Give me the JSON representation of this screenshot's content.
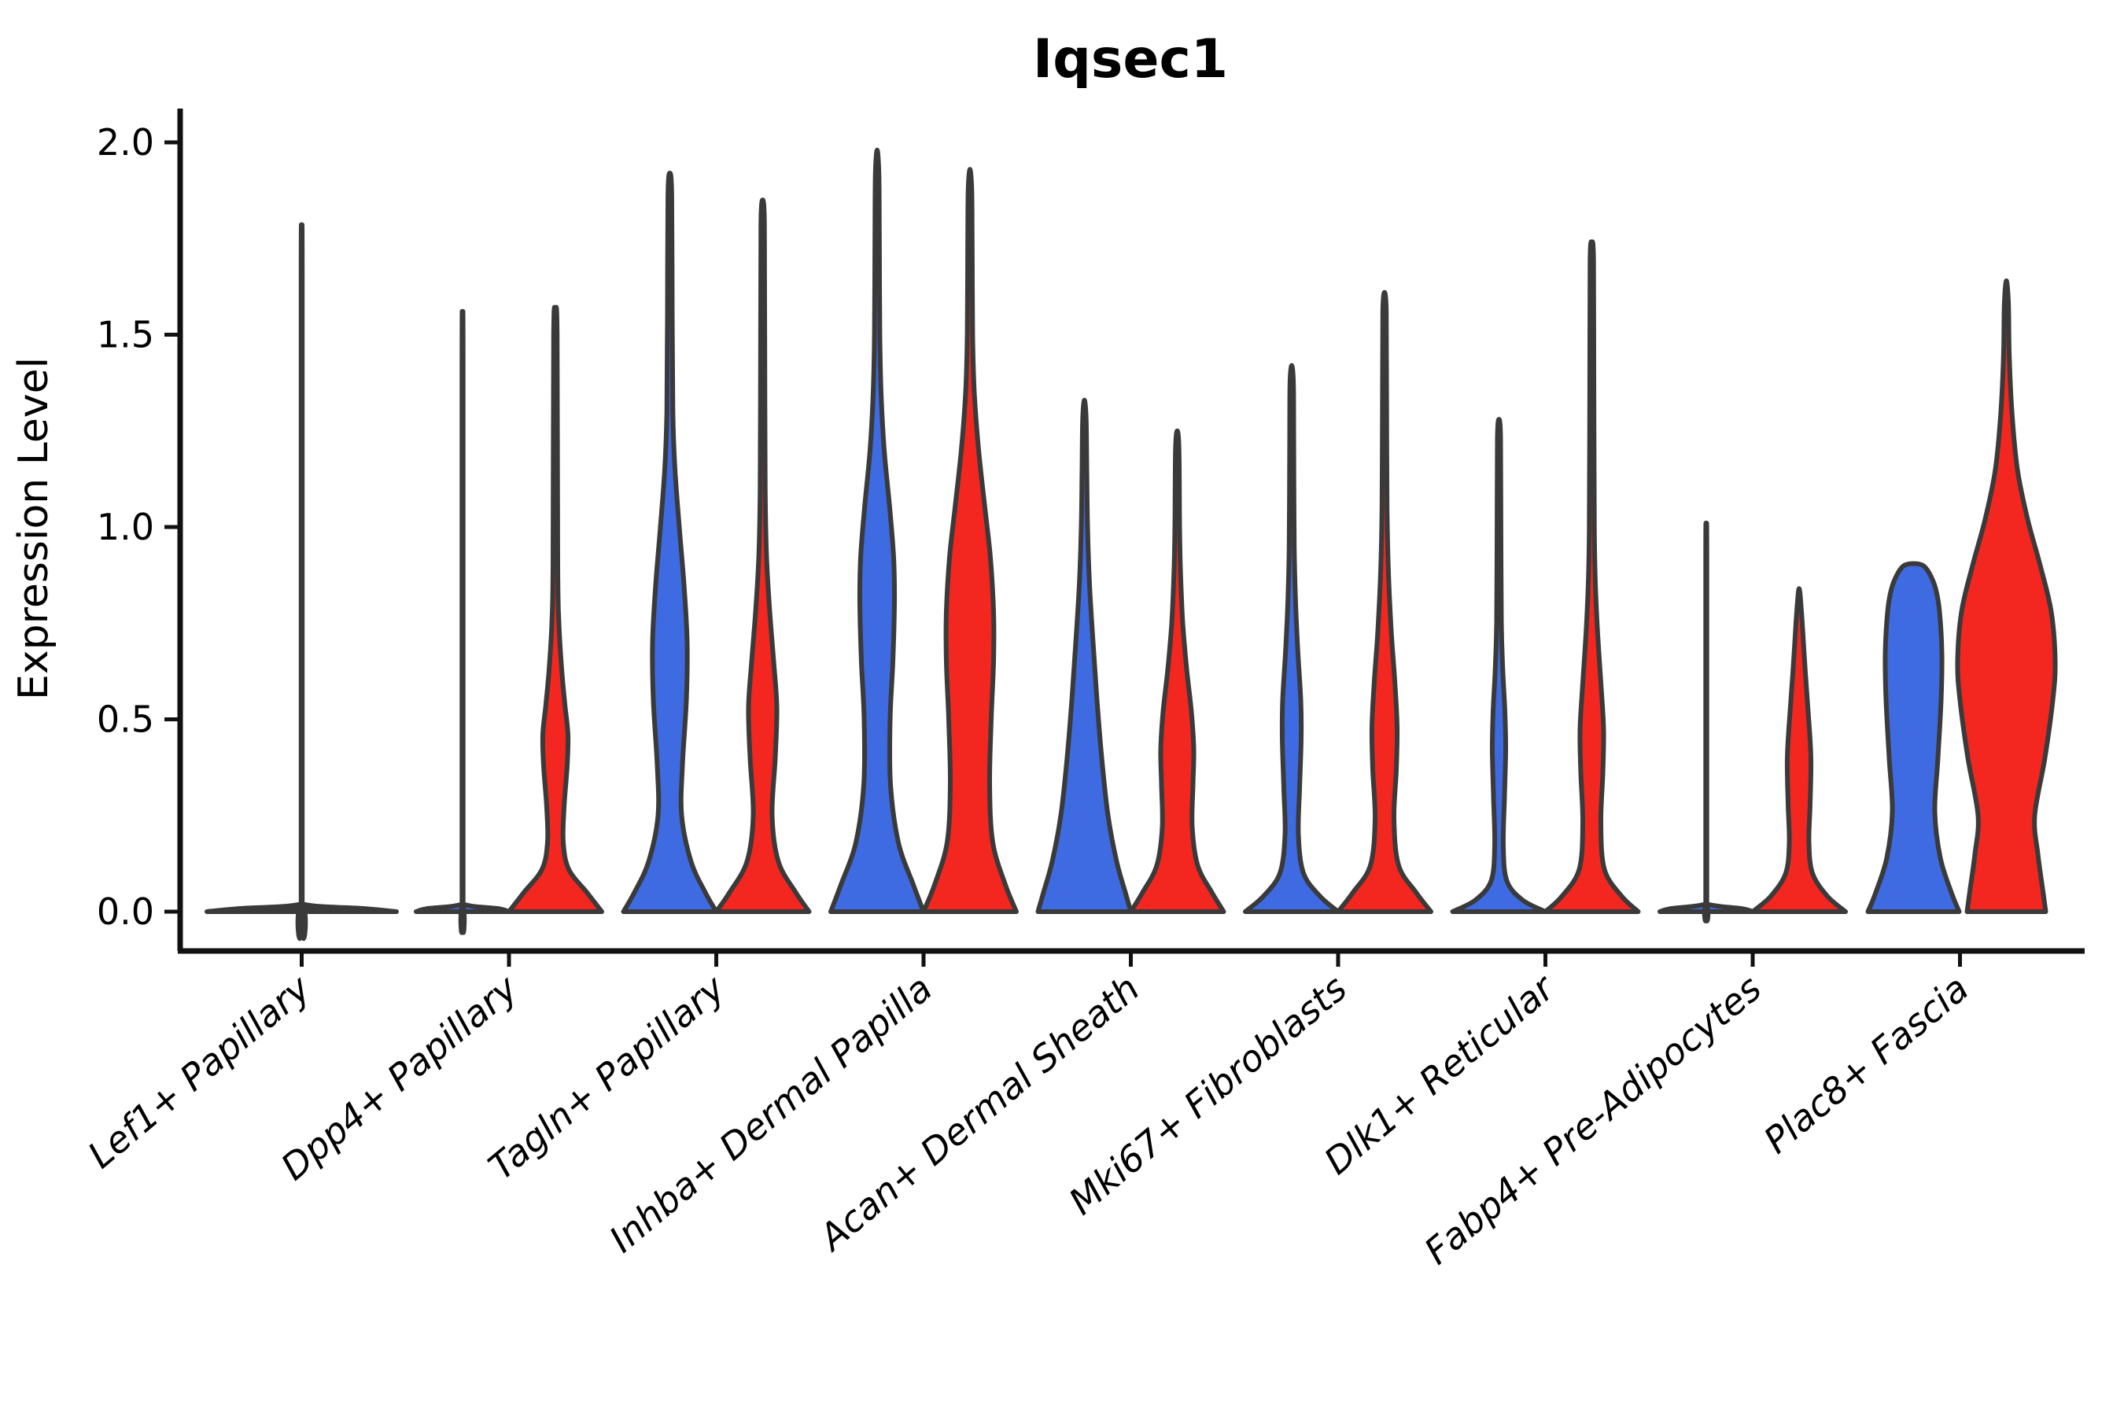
{
  "chart_data": {
    "type": "violin",
    "title": "Iqsec1",
    "ylabel": "Expression Level",
    "xlabel": "",
    "ylim": [
      -0.1,
      2.08
    ],
    "yticks": [
      0.0,
      0.5,
      1.0,
      1.5,
      2.0
    ],
    "ytick_labels": [
      "0.0",
      "0.5",
      "1.0",
      "1.5",
      "2.0"
    ],
    "grid": false,
    "legend": "none",
    "categories": [
      "Lef1+ Papillary",
      "Dpp4+ Papillary",
      "Tagln+ Papillary",
      "Inhba+ Dermal Papilla",
      "Acan+ Dermal Sheath",
      "Mki67+ Fibroblasts",
      "Dlk1+ Reticular",
      "Fabp4+ Pre-Adipocytes",
      "Plac8+ Fascia"
    ],
    "series": [
      {
        "name": "group-1",
        "color": "#3E6BE2"
      },
      {
        "name": "group-2",
        "color": "#F3271F"
      }
    ],
    "outline_color": "#3a3a3a",
    "violins": [
      {
        "category": "Lef1+ Papillary",
        "parts": [
          {
            "group": "both-degenerate",
            "offset": 0,
            "fill": "#3a3a3a",
            "max": 1.7,
            "profile": [
              [
                0,
                120.5
              ],
              [
                0.008,
                80
              ],
              [
                0.02,
                1.2
              ],
              [
                0.06,
                0.7
              ],
              [
                1.65,
                0.7
              ],
              [
                1.7,
                0
              ]
            ]
          }
        ]
      },
      {
        "category": "Dpp4+ Papillary",
        "parts": [
          {
            "group": "group-1",
            "offset": -59,
            "fill": "#3E6BE2",
            "max": 1.49,
            "profile": [
              [
                0,
                59
              ],
              [
                0.008,
                45
              ],
              [
                0.02,
                1.2
              ],
              [
                0.06,
                0.7
              ],
              [
                1.44,
                0.7
              ],
              [
                1.49,
                0
              ]
            ]
          },
          {
            "group": "group-2",
            "offset": 59,
            "fill": "#F3271F",
            "max": 1.56,
            "profile": [
              [
                0,
                59
              ],
              [
                0.05,
                40
              ],
              [
                0.11,
                17
              ],
              [
                0.18,
                10
              ],
              [
                0.27,
                11
              ],
              [
                0.38,
                15
              ],
              [
                0.46,
                16
              ],
              [
                0.54,
                12
              ],
              [
                0.63,
                8
              ],
              [
                0.75,
                4.5
              ],
              [
                0.9,
                3
              ],
              [
                1.5,
                2.2
              ],
              [
                1.56,
                0
              ]
            ]
          }
        ]
      },
      {
        "category": "Tagln+ Papillary",
        "parts": [
          {
            "group": "group-1",
            "offset": -59,
            "fill": "#3E6BE2",
            "max": 1.92,
            "profile": [
              [
                0,
                59
              ],
              [
                0.05,
                45
              ],
              [
                0.13,
                27
              ],
              [
                0.25,
                15
              ],
              [
                0.38,
                16
              ],
              [
                0.55,
                21
              ],
              [
                0.7,
                22
              ],
              [
                0.85,
                18
              ],
              [
                1.0,
                12
              ],
              [
                1.15,
                6.5
              ],
              [
                1.3,
                3.8
              ],
              [
                1.55,
                3
              ],
              [
                1.86,
                2.4
              ],
              [
                1.92,
                0
              ]
            ]
          },
          {
            "group": "group-2",
            "offset": 59,
            "fill": "#F3271F",
            "max": 1.85,
            "profile": [
              [
                0,
                59
              ],
              [
                0.05,
                42
              ],
              [
                0.13,
                20
              ],
              [
                0.25,
                12
              ],
              [
                0.4,
                16
              ],
              [
                0.53,
                18
              ],
              [
                0.65,
                14
              ],
              [
                0.78,
                9
              ],
              [
                0.92,
                5
              ],
              [
                1.1,
                3.2
              ],
              [
                1.5,
                2.6
              ],
              [
                1.79,
                2.2
              ],
              [
                1.85,
                0
              ]
            ]
          }
        ]
      },
      {
        "category": "Inhba+ Dermal Papilla",
        "parts": [
          {
            "group": "group-1",
            "offset": -59,
            "fill": "#3E6BE2",
            "max": 1.98,
            "profile": [
              [
                0,
                59
              ],
              [
                0.07,
                46
              ],
              [
                0.18,
                27
              ],
              [
                0.33,
                17
              ],
              [
                0.5,
                16.5
              ],
              [
                0.65,
                20
              ],
              [
                0.8,
                22
              ],
              [
                0.92,
                21
              ],
              [
                1.05,
                16
              ],
              [
                1.2,
                9
              ],
              [
                1.35,
                5
              ],
              [
                1.5,
                3.4
              ],
              [
                1.75,
                2.8
              ],
              [
                1.92,
                2.2
              ],
              [
                1.98,
                0
              ]
            ]
          },
          {
            "group": "group-2",
            "offset": 59,
            "fill": "#F3271F",
            "max": 1.93,
            "profile": [
              [
                0,
                59
              ],
              [
                0.07,
                45
              ],
              [
                0.18,
                29
              ],
              [
                0.33,
                25
              ],
              [
                0.5,
                27
              ],
              [
                0.65,
                30
              ],
              [
                0.78,
                30
              ],
              [
                0.92,
                26
              ],
              [
                1.05,
                19
              ],
              [
                1.2,
                11
              ],
              [
                1.35,
                5.5
              ],
              [
                1.5,
                3.4
              ],
              [
                1.75,
                2.8
              ],
              [
                1.88,
                2.2
              ],
              [
                1.93,
                0
              ]
            ]
          }
        ]
      },
      {
        "category": "Acan+ Dermal Sheath",
        "parts": [
          {
            "group": "group-1",
            "offset": -59,
            "fill": "#3E6BE2",
            "max": 1.33,
            "profile": [
              [
                0,
                59
              ],
              [
                0.05,
                52
              ],
              [
                0.13,
                41
              ],
              [
                0.25,
                30
              ],
              [
                0.4,
                22
              ],
              [
                0.55,
                16
              ],
              [
                0.7,
                11
              ],
              [
                0.85,
                6.5
              ],
              [
                1.0,
                4
              ],
              [
                1.15,
                3
              ],
              [
                1.28,
                2.2
              ],
              [
                1.33,
                0
              ]
            ]
          },
          {
            "group": "group-2",
            "offset": 59,
            "fill": "#F3271F",
            "max": 1.25,
            "profile": [
              [
                0,
                59
              ],
              [
                0.05,
                44
              ],
              [
                0.12,
                26
              ],
              [
                0.22,
                19
              ],
              [
                0.33,
                20
              ],
              [
                0.42,
                21
              ],
              [
                0.52,
                18
              ],
              [
                0.63,
                12
              ],
              [
                0.75,
                7
              ],
              [
                0.88,
                4.2
              ],
              [
                1.0,
                3
              ],
              [
                1.2,
                2.2
              ],
              [
                1.25,
                0
              ]
            ]
          }
        ]
      },
      {
        "category": "Mki67+ Fibroblasts",
        "parts": [
          {
            "group": "group-1",
            "offset": -59,
            "fill": "#3E6BE2",
            "max": 1.42,
            "profile": [
              [
                0,
                59
              ],
              [
                0.04,
                36
              ],
              [
                0.1,
                15
              ],
              [
                0.2,
                8.5
              ],
              [
                0.32,
                10
              ],
              [
                0.45,
                12
              ],
              [
                0.55,
                11.5
              ],
              [
                0.67,
                8
              ],
              [
                0.8,
                5
              ],
              [
                0.95,
                3.2
              ],
              [
                1.2,
                2.6
              ],
              [
                1.37,
                2.2
              ],
              [
                1.42,
                0
              ]
            ]
          },
          {
            "group": "group-2",
            "offset": 59,
            "fill": "#F3271F",
            "max": 1.61,
            "profile": [
              [
                0,
                59
              ],
              [
                0.05,
                40
              ],
              [
                0.12,
                18
              ],
              [
                0.24,
                12
              ],
              [
                0.37,
                15
              ],
              [
                0.48,
                16
              ],
              [
                0.6,
                13
              ],
              [
                0.73,
                8.5
              ],
              [
                0.88,
                5
              ],
              [
                1.05,
                3.2
              ],
              [
                1.35,
                2.6
              ],
              [
                1.56,
                2.2
              ],
              [
                1.61,
                0
              ]
            ]
          }
        ]
      },
      {
        "category": "Dlk1+ Reticular",
        "parts": [
          {
            "group": "group-1",
            "offset": -59,
            "fill": "#3E6BE2",
            "max": 1.28,
            "profile": [
              [
                0,
                59
              ],
              [
                0.03,
                30
              ],
              [
                0.08,
                10
              ],
              [
                0.17,
                5.5
              ],
              [
                0.3,
                7
              ],
              [
                0.42,
                8.5
              ],
              [
                0.52,
                7.5
              ],
              [
                0.63,
                4.8
              ],
              [
                0.75,
                3
              ],
              [
                1.0,
                2.4
              ],
              [
                1.23,
                2
              ],
              [
                1.28,
                0
              ]
            ]
          },
          {
            "group": "group-2",
            "offset": 59,
            "fill": "#F3271F",
            "max": 1.74,
            "profile": [
              [
                0,
                59
              ],
              [
                0.04,
                38
              ],
              [
                0.11,
                16
              ],
              [
                0.23,
                11.5
              ],
              [
                0.36,
                14
              ],
              [
                0.47,
                15
              ],
              [
                0.58,
                12
              ],
              [
                0.72,
                7.5
              ],
              [
                0.86,
                4.4
              ],
              [
                1.0,
                3.2
              ],
              [
                1.35,
                2.6
              ],
              [
                1.69,
                2.2
              ],
              [
                1.74,
                0
              ]
            ]
          }
        ]
      },
      {
        "category": "Fabp4+ Pre-Adipocytes",
        "parts": [
          {
            "group": "group-1",
            "offset": -59,
            "fill": "#3E6BE2",
            "max": 0.97,
            "profile": [
              [
                0,
                59
              ],
              [
                0.008,
                45
              ],
              [
                0.02,
                1.2
              ],
              [
                0.05,
                0.7
              ],
              [
                0.93,
                0.7
              ],
              [
                0.97,
                0
              ]
            ]
          },
          {
            "group": "group-2",
            "offset": 59,
            "fill": "#F3271F",
            "max": 0.84,
            "profile": [
              [
                0,
                59
              ],
              [
                0.04,
                36
              ],
              [
                0.1,
                17
              ],
              [
                0.18,
                12.5
              ],
              [
                0.28,
                14
              ],
              [
                0.4,
                15
              ],
              [
                0.52,
                11.5
              ],
              [
                0.62,
                8
              ],
              [
                0.7,
                5.5
              ],
              [
                0.78,
                3
              ],
              [
                0.84,
                0
              ]
            ]
          }
        ]
      },
      {
        "category": "Plac8+ Fascia",
        "parts": [
          {
            "group": "group-1",
            "offset": -59,
            "fill": "#3E6BE2",
            "max": 0.91,
            "profile": [
              [
                0,
                58
              ],
              [
                0.05,
                48
              ],
              [
                0.14,
                34
              ],
              [
                0.26,
                27
              ],
              [
                0.4,
                31
              ],
              [
                0.55,
                35
              ],
              [
                0.67,
                36
              ],
              [
                0.78,
                33
              ],
              [
                0.84,
                28
              ],
              [
                0.88,
                20
              ],
              [
                0.9,
                12
              ],
              [
                0.905,
                0
              ]
            ]
          },
          {
            "group": "group-2",
            "offset": 59,
            "fill": "#F3271F",
            "max": 1.64,
            "profile": [
              [
                0,
                50
              ],
              [
                0.06,
                46
              ],
              [
                0.15,
                40
              ],
              [
                0.25,
                36
              ],
              [
                0.4,
                49
              ],
              [
                0.55,
                59
              ],
              [
                0.65,
                62
              ],
              [
                0.78,
                57
              ],
              [
                0.9,
                43
              ],
              [
                1.02,
                27
              ],
              [
                1.15,
                14
              ],
              [
                1.3,
                7
              ],
              [
                1.45,
                3.6
              ],
              [
                1.58,
                2.6
              ],
              [
                1.64,
                0
              ]
            ]
          }
        ]
      }
    ]
  }
}
